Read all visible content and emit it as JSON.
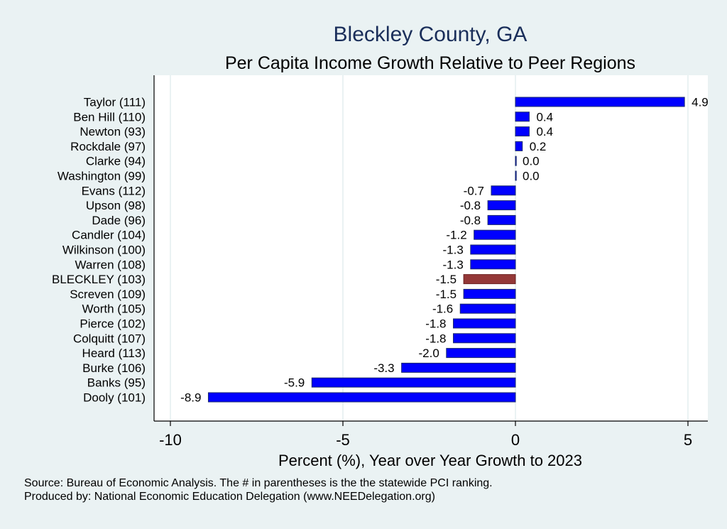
{
  "chart_data": {
    "type": "bar",
    "orientation": "horizontal",
    "title": "Bleckley County, GA",
    "subtitle": "Per Capita Income Growth Relative to Peer Regions",
    "xlabel": "Percent (%), Year over Year Growth to 2023",
    "xlim": [
      -10,
      5.5
    ],
    "xticks": [
      -10,
      -5,
      0,
      5
    ],
    "xtick_labels": [
      "-10",
      "-5",
      "0",
      "5"
    ],
    "grid": true,
    "categories": [
      "Taylor (111)",
      "Ben Hill (110)",
      "Newton (93)",
      "Rockdale (97)",
      "Clarke (94)",
      "Washington (99)",
      "Evans (112)",
      "Upson (98)",
      "Dade (96)",
      "Candler (104)",
      "Wilkinson (100)",
      "Warren (108)",
      "BLECKLEY (103)",
      "Screven (109)",
      "Worth (105)",
      "Pierce (102)",
      "Colquitt (107)",
      "Heard (113)",
      "Burke (106)",
      "Banks (95)",
      "Dooly (101)"
    ],
    "values": [
      4.9,
      0.4,
      0.4,
      0.2,
      0.0,
      0.0,
      -0.7,
      -0.8,
      -0.8,
      -1.2,
      -1.3,
      -1.3,
      -1.5,
      -1.5,
      -1.6,
      -1.8,
      -1.8,
      -2.0,
      -3.3,
      -5.9,
      -8.9
    ],
    "value_labels": [
      "4.9",
      "0.4",
      "0.4",
      "0.2",
      "0.0",
      "0.0",
      "-0.7",
      "-0.8",
      "-0.8",
      "-1.2",
      "-1.3",
      "-1.3",
      "-1.5",
      "-1.5",
      "-1.6",
      "-1.8",
      "-1.8",
      "-2.0",
      "-3.3",
      "-5.9",
      "-8.9"
    ],
    "highlight_index": 12,
    "colors": {
      "bar": "#0000ff",
      "bar_edge": "#1a2a6c",
      "highlight": "#943838",
      "highlight_edge": "#6b2424",
      "grid": "#eaf2f3",
      "plot_bg": "#ffffff",
      "background": "#eaf2f3"
    }
  },
  "footer": {
    "source": "Source: Bureau of Economic Analysis. The # in parentheses is the the statewide PCI ranking.",
    "produced": "Produced by: National Economic Education Delegation (www.NEEDelegation.org)"
  }
}
